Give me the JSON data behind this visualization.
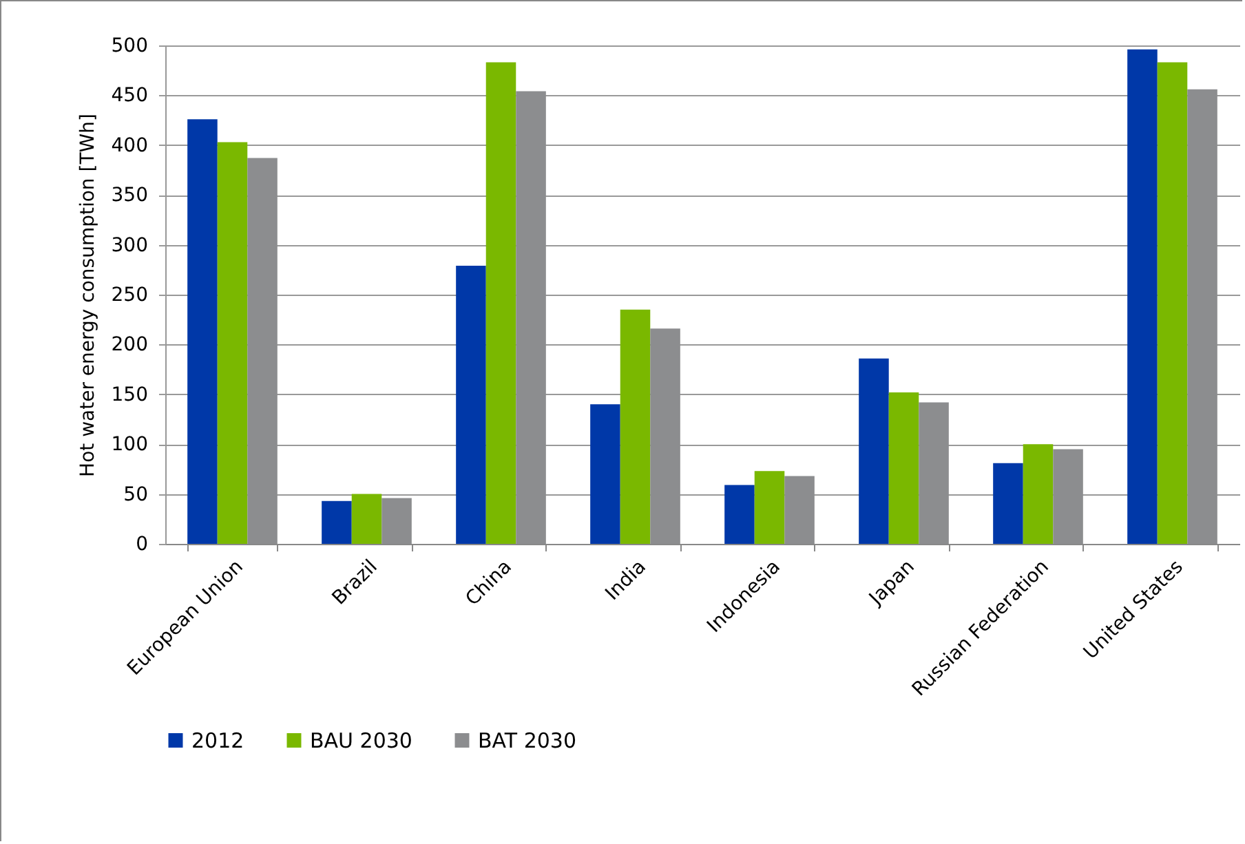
{
  "chart_data": {
    "type": "bar",
    "ylabel": "Hot water energy consumption [TWh]",
    "categories": [
      "European Union",
      "Brazil",
      "China",
      "India",
      "Indonesia",
      "Japan",
      "Russian Federation",
      "United States"
    ],
    "series": [
      {
        "name": "2012",
        "color": "#0038a8",
        "values": [
          426,
          43,
          279,
          140,
          59,
          186,
          81,
          496
        ]
      },
      {
        "name": "BAU 2030",
        "color": "#7ab800",
        "values": [
          403,
          50,
          483,
          235,
          73,
          152,
          100,
          483
        ]
      },
      {
        "name": "BAT 2030",
        "color": "#8c8d8f",
        "values": [
          387,
          46,
          454,
          216,
          68,
          142,
          95,
          456
        ]
      }
    ],
    "ylim": [
      0,
      500
    ],
    "yticks": [
      0,
      50,
      100,
      150,
      200,
      250,
      300,
      350,
      400,
      450,
      500
    ],
    "grid": "y",
    "legend": "bottom"
  }
}
